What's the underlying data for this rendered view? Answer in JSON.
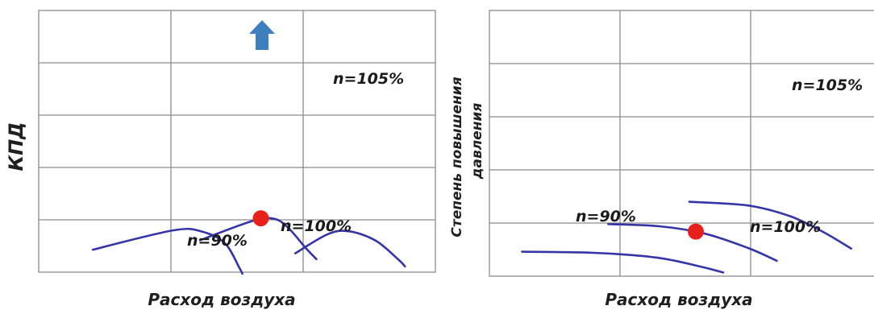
{
  "chart_data": [
    {
      "type": "line",
      "title": "",
      "xlabel": "Расход воздуха",
      "ylabel": "КПД",
      "grid": true,
      "series": [
        {
          "name": "n=90%",
          "points": [
            [
              0.41,
              0.43
            ],
            [
              1.02,
              0.8
            ],
            [
              1.24,
              0.77
            ],
            [
              1.41,
              0.55
            ],
            [
              1.52,
              0.07
            ],
            [
              1.54,
              -0.03
            ]
          ]
        },
        {
          "name": "n=100%",
          "points": [
            [
              1.22,
              0.61
            ],
            [
              1.62,
              0.98
            ],
            [
              1.78,
              1.02
            ],
            [
              1.89,
              0.84
            ],
            [
              2.02,
              0.46
            ],
            [
              2.1,
              0.25
            ]
          ]
        },
        {
          "name": "n=105%",
          "points": [
            [
              1.94,
              0.36
            ],
            [
              2.19,
              0.73
            ],
            [
              2.35,
              0.78
            ],
            [
              2.55,
              0.6
            ],
            [
              2.72,
              0.24
            ],
            [
              2.77,
              0.11
            ]
          ]
        }
      ],
      "marker": {
        "series": "n=100%",
        "point": [
          1.68,
          1.03
        ],
        "color": "#e8201c"
      },
      "arrow": {
        "direction": "up",
        "color": "#3d7fbf"
      },
      "colors": {
        "curve": "#3535a8",
        "grid": "#8c8c8c"
      }
    },
    {
      "type": "line",
      "title": "",
      "xlabel": "Расход воздуха",
      "ylabel": [
        "Степень повышения",
        "давления"
      ],
      "grid": true,
      "series": [
        {
          "name": "n=90%",
          "points": [
            [
              0.25,
              0.46
            ],
            [
              0.8,
              0.44
            ],
            [
              1.28,
              0.35
            ],
            [
              1.6,
              0.19
            ],
            [
              1.79,
              0.07
            ]
          ]
        },
        {
          "name": "n=100%",
          "points": [
            [
              0.91,
              0.98
            ],
            [
              1.3,
              0.94
            ],
            [
              1.65,
              0.8
            ],
            [
              1.98,
              0.53
            ],
            [
              2.2,
              0.29
            ]
          ]
        },
        {
          "name": "n=105%",
          "points": [
            [
              1.53,
              1.4
            ],
            [
              1.98,
              1.33
            ],
            [
              2.3,
              1.13
            ],
            [
              2.55,
              0.84
            ],
            [
              2.77,
              0.52
            ]
          ]
        }
      ],
      "marker": {
        "series": "n=100%",
        "point": [
          1.58,
          0.84
        ],
        "color": "#e8201c"
      },
      "colors": {
        "curve": "#3535a8",
        "grid": "#8c8c8c"
      }
    }
  ]
}
